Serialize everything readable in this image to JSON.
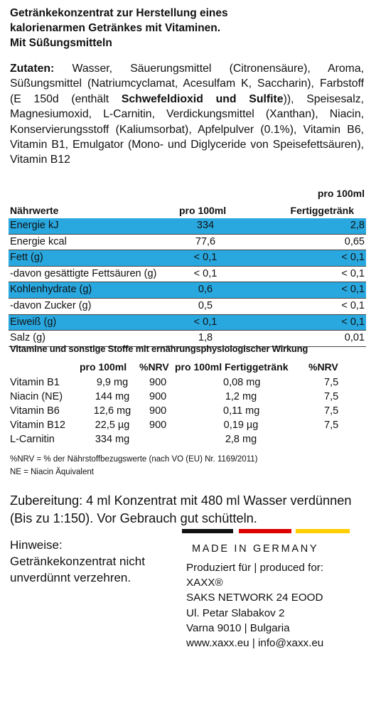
{
  "title_lines": [
    "Getränkekonzentrat zur Herstellung eines",
    "kalorienarmen Getränkes mit Vitaminen.",
    "Mit Süßungsmitteln"
  ],
  "ingredients": {
    "label": "Zutaten:",
    "part1": " Wasser, Säuerungsmittel (Citronensäure), Aroma, Süßungsmittel (Natriumcyclamat, Acesulfam K, Saccharin), Farbstoff (E 150d (enthält ",
    "bold": "Schwefeldioxid und Sulfite",
    "part2": ")), Speisesalz, Magnesiumoxid, L-Carnitin, Verdickungsmittel (Xanthan), Niacin, Konservierungsstoff (Kaliumsorbat), Apfelpulver (0.1%), Vitamin B6, Vitamin B1, Emulgator (Mono- und Diglyceride von Speisefettsäuren), Vitamin B12"
  },
  "nutrition": {
    "header_label": "Nährwerte",
    "col1": "pro 100ml",
    "col2_line1": "pro 100ml",
    "col2_line2": "Fertiggetränk",
    "highlight_color": "#29a8e0",
    "rows": [
      {
        "label": "Energie kJ",
        "v1": "334",
        "v2": "2,8",
        "highlight": true
      },
      {
        "label": "Energie kcal",
        "v1": "77,6",
        "v2": "0,65",
        "highlight": false
      },
      {
        "label": "Fett (g)",
        "v1": "< 0,1",
        "v2": "< 0,1",
        "highlight": true
      },
      {
        "label": "-davon gesättigte Fettsäuren (g)",
        "v1": "< 0,1",
        "v2": "< 0,1",
        "highlight": false
      },
      {
        "label": "Kohlenhydrate (g)",
        "v1": "0,6",
        "v2": "< 0,1",
        "highlight": true
      },
      {
        "label": "-davon Zucker (g)",
        "v1": "0,5",
        "v2": "< 0,1",
        "highlight": false
      },
      {
        "label": "Eiweiß (g)",
        "v1": "< 0,1",
        "v2": "< 0,1",
        "highlight": true
      },
      {
        "label": "Salz (g)",
        "v1": "1,8",
        "v2": "0,01",
        "highlight": false
      }
    ]
  },
  "vitamins": {
    "title": "Vitamine und sonstige Stoffe mit ernährungsphysiologischer Wirkung",
    "headers": [
      "pro 100ml",
      "%NRV",
      "pro 100ml Fertiggetränk",
      "%NRV"
    ],
    "rows": [
      {
        "name": "Vitamin B1",
        "val": "9,9 mg",
        "nrv": "900",
        "val2": "0,08 mg",
        "nrv2": "7,5"
      },
      {
        "name": "Niacin (NE)",
        "val": "144 mg",
        "nrv": "900",
        "val2": "1,2 mg",
        "nrv2": "7,5"
      },
      {
        "name": "Vitamin B6",
        "val": "12,6 mg",
        "nrv": "900",
        "val2": "0,11 mg",
        "nrv2": "7,5"
      },
      {
        "name": "Vitamin B12",
        "val": "22,5 µg",
        "nrv": "900",
        "val2": "0,19 µg",
        "nrv2": "7,5"
      },
      {
        "name": "L-Carnitin",
        "val": "334 mg",
        "nrv": "",
        "val2": "2,8 mg",
        "nrv2": ""
      }
    ]
  },
  "footnotes": [
    "%NRV  = % der Nährstoffbezugswerte (nach VO (EU) Nr. 1169/2011)",
    "NE = Niacin Äquivalent"
  ],
  "preparation": "Zubereitung: 4 ml Konzentrat mit 480 ml Wasser verdünnen (Bis zu 1:150). Vor Gebrauch gut schütteln.",
  "hints": {
    "heading": "Hinweise:",
    "text": "Getränkekonzentrat nicht unverdünnt verzehren."
  },
  "flag_colors": [
    "#111111",
    "#dd0000",
    "#ffce00"
  ],
  "made_in": "MADE IN GERMANY",
  "producer_lines": [
    "Produziert für | produced for:",
    "XAXX®",
    "SAKS NETWORK 24 EOOD",
    "Ul. Petar Slabakov 2",
    "Varna 9010 | Bulgaria",
    "www.xaxx.eu | info@xaxx.eu"
  ]
}
